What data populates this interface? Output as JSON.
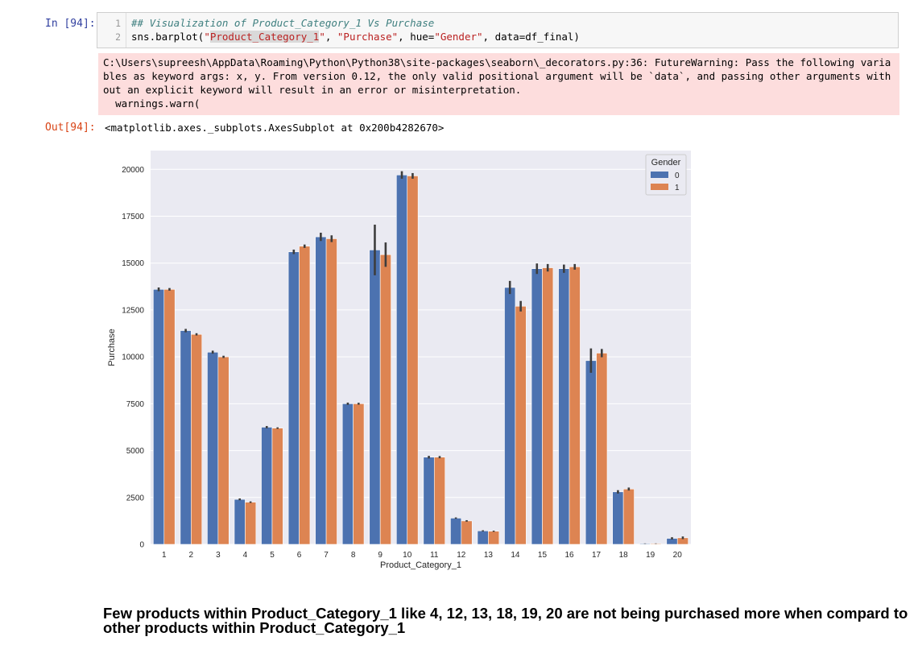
{
  "input_cell": {
    "prompt": "In [94]:",
    "line_numbers": [
      "1",
      "2"
    ],
    "line1_comment": "## Visualization of Product_Category_1 Vs Purchase",
    "line2": {
      "p1": "sns.barplot(",
      "s1": "\"Product_Category_1\"",
      "p2": ", ",
      "s2": "\"Purchase\"",
      "p3": ", hue=",
      "s3": "\"Gender\"",
      "p4": ", data=df_final)"
    }
  },
  "stderr": {
    "text": "C:\\Users\\supreesh\\AppData\\Roaming\\Python\\Python38\\site-packages\\seaborn\\_decorators.py:36: FutureWarning: Pass the following variables as keyword args: x, y. From version 0.12, the only valid positional argument will be `data`, and passing other arguments without an explicit keyword will result in an error or misinterpretation.\n  warnings.warn("
  },
  "output": {
    "prompt": "Out[94]:",
    "repr": "<matplotlib.axes._subplots.AxesSubplot at 0x200b4282670>"
  },
  "chart_data": {
    "type": "bar",
    "xlabel": "Product_Category_1",
    "ylabel": "Purchase",
    "categories": [
      "1",
      "2",
      "3",
      "4",
      "5",
      "6",
      "7",
      "8",
      "9",
      "10",
      "11",
      "12",
      "13",
      "14",
      "15",
      "16",
      "17",
      "18",
      "19",
      "20"
    ],
    "ylim": [
      0,
      21000
    ],
    "yticks": [
      0,
      2500,
      5000,
      7500,
      10000,
      12500,
      15000,
      17500,
      20000
    ],
    "grid": true,
    "legend": {
      "title": "Gender",
      "placement": "top-right"
    },
    "series": [
      {
        "name": "0",
        "color": "#4c72b0",
        "values": [
          13600,
          11400,
          10250,
          2400,
          6250,
          15600,
          16400,
          7500,
          15700,
          19700,
          4650,
          1400,
          720,
          13700,
          14700,
          14700,
          9800,
          2800,
          40,
          320
        ],
        "err": [
          100,
          90,
          80,
          50,
          60,
          120,
          220,
          60,
          1350,
          200,
          70,
          35,
          30,
          350,
          280,
          220,
          650,
          90,
          10,
          60
        ]
      },
      {
        "name": "1",
        "color": "#dd8452",
        "values": [
          13600,
          11200,
          10000,
          2250,
          6200,
          15900,
          16300,
          7500,
          15450,
          19650,
          4650,
          1250,
          700,
          12700,
          14750,
          14800,
          10200,
          2950,
          40,
          350
        ],
        "err": [
          70,
          60,
          60,
          40,
          40,
          90,
          180,
          50,
          650,
          150,
          60,
          40,
          30,
          280,
          200,
          150,
          220,
          80,
          10,
          70
        ]
      }
    ]
  },
  "markdown": {
    "text": "Few products within Product_Category_1 like 4, 12, 13, 18, 19, 20 are not being purchased more when compard to other products within Product_Category_1"
  },
  "colors": {
    "prompt_in": "#303f9f",
    "prompt_out": "#d84315",
    "stderr_bg": "#fddddd",
    "axes_bg": "#eaeaf2"
  }
}
